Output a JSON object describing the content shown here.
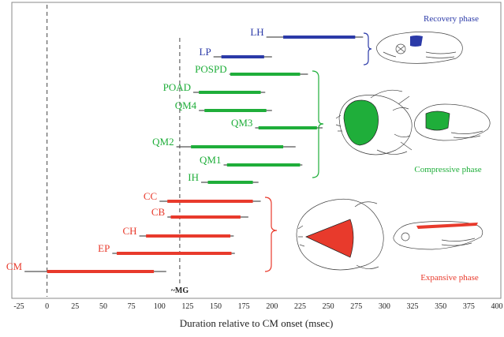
{
  "chart_data": {
    "type": "bar",
    "xlabel": "Duration relative to CM onset (msec)",
    "xlim": [
      -25,
      400
    ],
    "xticks": [
      -25,
      0,
      25,
      50,
      75,
      100,
      125,
      150,
      175,
      200,
      225,
      250,
      275,
      300,
      325,
      350,
      375,
      400
    ],
    "marker_line": {
      "x": 118,
      "label": "~MG"
    },
    "zero_line": {
      "x": 0
    },
    "colors": {
      "recovery": "#2b3aa8",
      "compressive": "#1fae3a",
      "expansive": "#e83a2c",
      "range": "#555555"
    },
    "phases": [
      {
        "name": "Recovery phase",
        "color": "#2b3aa8"
      },
      {
        "name": "Compressive phase",
        "color": "#1fae3a"
      },
      {
        "name": "Expansive phase",
        "color": "#e83a2c"
      }
    ],
    "series": [
      {
        "name": "LH",
        "phase": "recovery",
        "range": [
          195,
          281
        ],
        "active": [
          210,
          274
        ]
      },
      {
        "name": "LP",
        "phase": "recovery",
        "range": [
          148,
          200
        ],
        "active": [
          155,
          193
        ]
      },
      {
        "name": "POSPD",
        "phase": "compressive",
        "range": [
          162,
          232
        ],
        "active": [
          163,
          225
        ]
      },
      {
        "name": "POAD",
        "phase": "compressive",
        "range": [
          130,
          194
        ],
        "active": [
          135,
          190
        ]
      },
      {
        "name": "QM4",
        "phase": "compressive",
        "range": [
          135,
          200
        ],
        "active": [
          140,
          195
        ]
      },
      {
        "name": "QM3",
        "phase": "compressive",
        "range": [
          185,
          245
        ],
        "active": [
          188,
          240
        ]
      },
      {
        "name": "QM2",
        "phase": "compressive",
        "range": [
          115,
          221
        ],
        "active": [
          128,
          210
        ]
      },
      {
        "name": "QM1",
        "phase": "compressive",
        "range": [
          157,
          227
        ],
        "active": [
          160,
          225
        ]
      },
      {
        "name": "IH",
        "phase": "compressive",
        "range": [
          137,
          188
        ],
        "active": [
          143,
          183
        ]
      },
      {
        "name": "CC",
        "phase": "expansive",
        "range": [
          100,
          190
        ],
        "active": [
          107,
          183
        ]
      },
      {
        "name": "CB",
        "phase": "expansive",
        "range": [
          107,
          179
        ],
        "active": [
          110,
          172
        ]
      },
      {
        "name": "CH",
        "phase": "expansive",
        "range": [
          82,
          166
        ],
        "active": [
          88,
          163
        ]
      },
      {
        "name": "EP",
        "phase": "expansive",
        "range": [
          58,
          167
        ],
        "active": [
          62,
          164
        ]
      },
      {
        "name": "CM",
        "phase": "expansive",
        "range": [
          -20,
          106
        ],
        "active": [
          0,
          95
        ]
      }
    ]
  }
}
